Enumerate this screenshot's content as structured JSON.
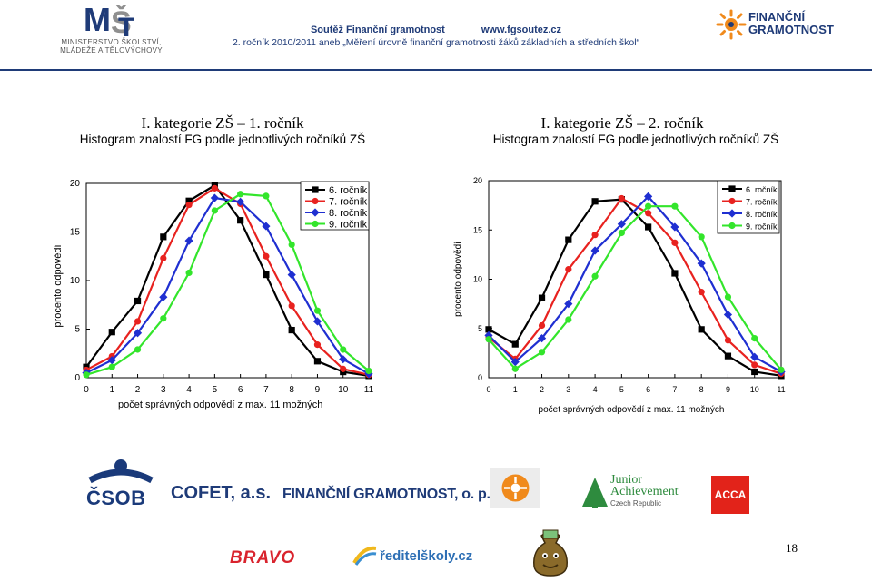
{
  "header": {
    "title": "Soutěž Finanční gramotnost",
    "website": "www.fgsoutez.cz",
    "subtitle": "2. ročník 2010/2011 aneb „Měření úrovně finanční gramotnosti žáků základních a středních škol“",
    "msmt_line1": "MINISTERSTVO ŠKOLSTVÍ,",
    "msmt_line2": "MLÁDEŽE A TĚLOVÝCHOVY",
    "fg_logo_line1": "FINANČNÍ",
    "fg_logo_line2": "GRAMOTNOST"
  },
  "left": {
    "category": "I. kategorie ZŠ – 1. ročník",
    "histogram": "Histogram znalostí FG podle jednotlivých ročníků ZŠ"
  },
  "right": {
    "category": "I. kategorie ZŠ – 2. ročník",
    "histogram": "Histogram znalostí FG podle jednotlivých ročníků ZŠ"
  },
  "chart_data": [
    {
      "type": "line",
      "xlabel": "počet správných odpovědí z max. 11 možných",
      "ylabel": "procento odpovědí",
      "xlim": [
        0,
        11
      ],
      "ylim": [
        0,
        20
      ],
      "x": [
        0,
        1,
        2,
        3,
        4,
        5,
        6,
        7,
        8,
        9,
        10,
        11
      ],
      "xticks": [
        "0",
        "1",
        "2",
        "3",
        "4",
        "5",
        "6",
        "7",
        "8",
        "9",
        "10",
        "11"
      ],
      "yticks": [
        "0",
        "5",
        "10",
        "15",
        "20"
      ],
      "legend_position": "top-right",
      "series": [
        {
          "name": "6. ročník",
          "color": "#000000",
          "marker": "square",
          "values": [
            1.1,
            4.7,
            7.9,
            14.5,
            18.2,
            19.8,
            16.2,
            10.6,
            4.9,
            1.7,
            0.6,
            0.2
          ]
        },
        {
          "name": "7. ročník",
          "color": "#e8221f",
          "marker": "circle",
          "values": [
            0.8,
            2.2,
            5.8,
            12.3,
            17.8,
            19.5,
            17.9,
            12.5,
            7.4,
            3.4,
            0.9,
            0.3
          ]
        },
        {
          "name": "8. ročník",
          "color": "#1f2fd1",
          "marker": "diamond",
          "values": [
            0.5,
            1.8,
            4.6,
            8.3,
            14.1,
            18.5,
            18.1,
            15.6,
            10.6,
            5.8,
            1.9,
            0.4
          ]
        },
        {
          "name": "9. ročník",
          "color": "#33e52b",
          "marker": "circle",
          "values": [
            0.3,
            1.1,
            2.9,
            6.1,
            10.8,
            17.2,
            18.9,
            18.7,
            13.7,
            6.9,
            2.9,
            0.7
          ]
        }
      ]
    },
    {
      "type": "line",
      "xlabel": "počet správných odpovědí z max. 11 možných",
      "ylabel": "procento odpovědí",
      "xlim": [
        0,
        11
      ],
      "ylim": [
        0,
        20
      ],
      "x": [
        0,
        1,
        2,
        3,
        4,
        5,
        6,
        7,
        8,
        9,
        10,
        11
      ],
      "xticks": [
        "0",
        "1",
        "2",
        "3",
        "4",
        "5",
        "6",
        "7",
        "8",
        "9",
        "10",
        "11"
      ],
      "yticks": [
        "0",
        "5",
        "10",
        "15",
        "20"
      ],
      "legend_position": "top-right",
      "series": [
        {
          "name": "6. ročník",
          "color": "#000000",
          "marker": "square",
          "values": [
            4.9,
            3.4,
            8.1,
            14.0,
            17.9,
            18.1,
            15.3,
            10.6,
            4.9,
            2.2,
            0.6,
            0.2
          ]
        },
        {
          "name": "7. ročník",
          "color": "#e8221f",
          "marker": "circle",
          "values": [
            4.1,
            1.9,
            5.3,
            11.0,
            14.5,
            18.2,
            16.7,
            13.7,
            8.7,
            3.8,
            1.3,
            0.4
          ]
        },
        {
          "name": "8. ročník",
          "color": "#1f2fd1",
          "marker": "diamond",
          "values": [
            4.3,
            1.6,
            4.0,
            7.5,
            12.9,
            15.6,
            18.4,
            15.3,
            11.6,
            6.4,
            2.1,
            0.6
          ]
        },
        {
          "name": "9. ročník",
          "color": "#33e52b",
          "marker": "circle",
          "values": [
            3.9,
            0.9,
            2.6,
            5.9,
            10.3,
            14.7,
            17.4,
            17.4,
            14.3,
            8.2,
            4.0,
            0.8
          ]
        }
      ]
    }
  ],
  "sponsors": {
    "csob": "ČSOB",
    "cofet": "COFET, a.s.",
    "fg_ops": "FINANČNÍ GRAMOTNOST, o. p. s.",
    "ja_line1": "Junior",
    "ja_line2": "Achievement",
    "ja_line3": "Czech Republic",
    "acca": "ACCA",
    "bravo": "BRAVO",
    "reditel": "ředitelškoly.cz"
  },
  "colors": {
    "navy": "#1f3b78",
    "acca_red": "#e2231a",
    "orange": "#f08a1c",
    "bravo_red": "#d9232d"
  },
  "page_number": "18"
}
